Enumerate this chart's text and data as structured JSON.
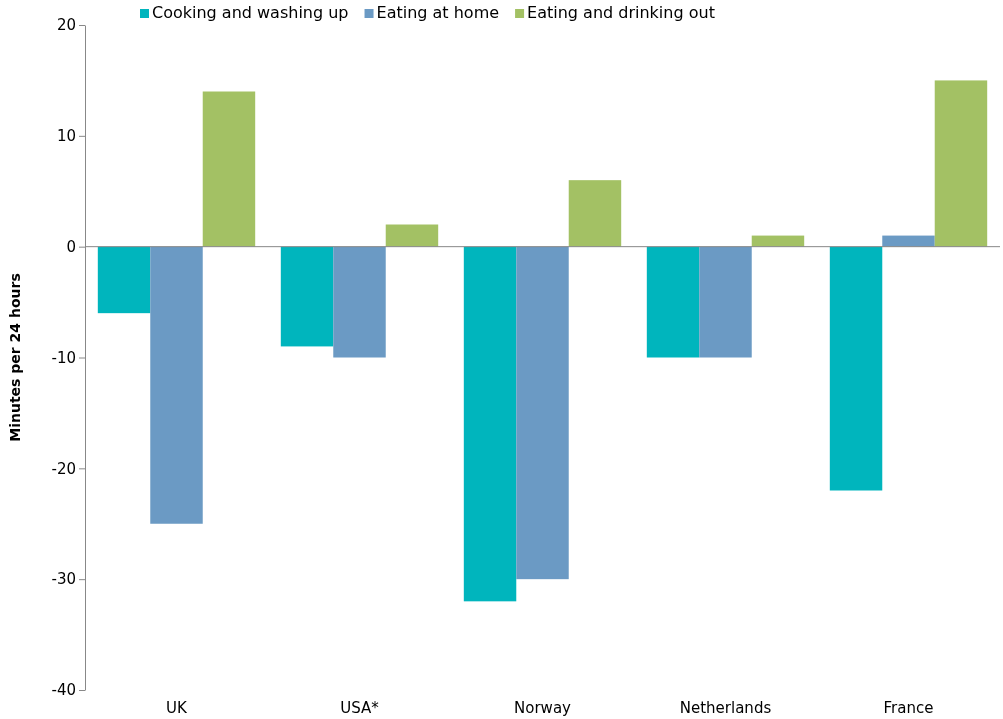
{
  "chart_data": {
    "type": "bar",
    "ylabel": "Minutes per 24 hours",
    "categories": [
      "UK",
      "USA*",
      "Norway",
      "Netherlands",
      "France"
    ],
    "series": [
      {
        "name": "Cooking and washing up",
        "color": "#00b5bd",
        "values": [
          -6,
          -9,
          -32,
          -10,
          -22
        ]
      },
      {
        "name": "Eating at home",
        "color": "#6b9ac4",
        "values": [
          -25,
          -10,
          -30,
          -10,
          1
        ]
      },
      {
        "name": "Eating and drinking out",
        "color": "#a3c164",
        "values": [
          14,
          2,
          6,
          1,
          15
        ]
      }
    ],
    "ylim": [
      -40,
      20
    ],
    "yticks": [
      -40,
      -30,
      -20,
      -10,
      0,
      10,
      20
    ],
    "legend": "top"
  }
}
